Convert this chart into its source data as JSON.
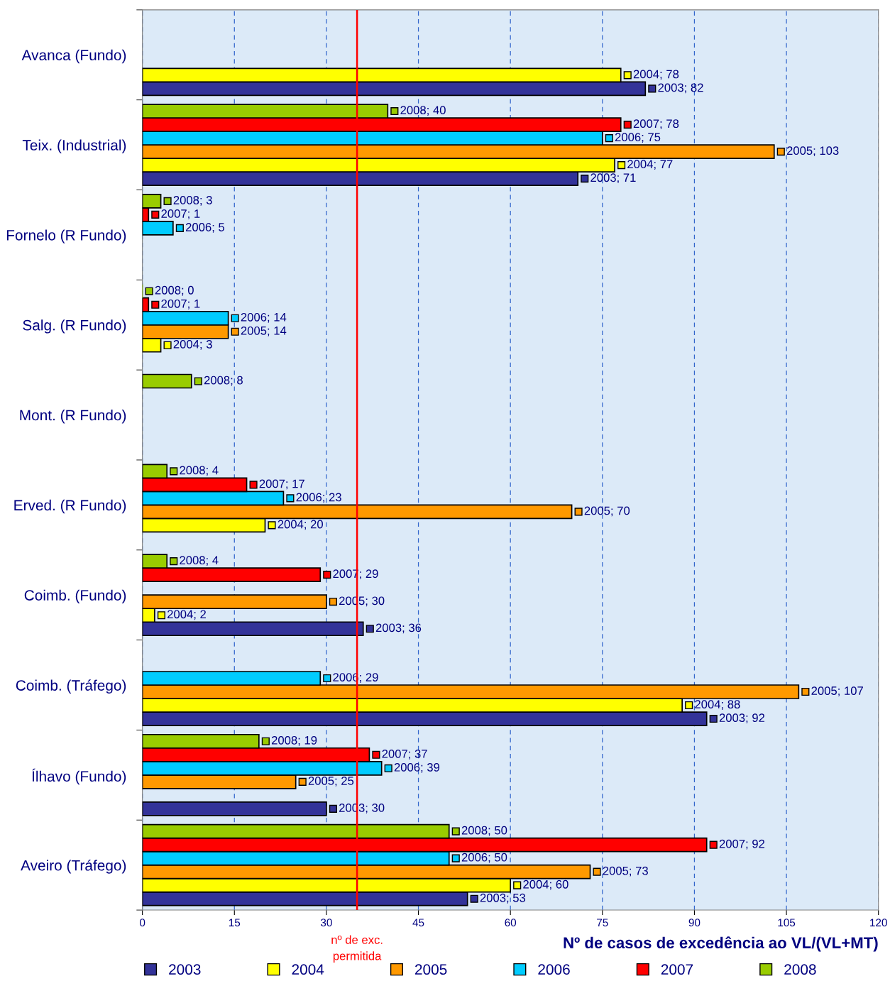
{
  "chart_data": {
    "type": "bar",
    "orientation": "horizontal",
    "xlabel": "Nº de casos de excedência ao VL/(VL+MT)",
    "categories": [
      "Avanca (Fundo)",
      "Teix. (Industrial)",
      "Fornelo (R Fundo)",
      "Salg. (R Fundo)",
      "Mont. (R Fundo)",
      "Erved. (R Fundo)",
      "Coimb. (Fundo)",
      "Coimb. (Tráfego)",
      "Ílhavo (Fundo)",
      "Aveiro (Tráfego)"
    ],
    "series": [
      {
        "name": "2003",
        "color": "#333399",
        "values": [
          82,
          71,
          null,
          null,
          null,
          null,
          36,
          92,
          30,
          53
        ],
        "value_labels": [
          "2003; 82",
          "2003; 71",
          null,
          null,
          null,
          null,
          "2003; 36",
          "2003; 92",
          "2003; 30",
          "2003; 53"
        ]
      },
      {
        "name": "2004",
        "color": "#ffff00",
        "values": [
          78,
          77,
          null,
          3,
          null,
          20,
          2,
          88,
          null,
          60
        ],
        "value_labels": [
          "2004; 78",
          "2004; 77",
          null,
          "2004; 3",
          null,
          "2004; 20",
          "2004; 2",
          "2004; 88",
          null,
          "2004; 60"
        ]
      },
      {
        "name": "2005",
        "color": "#ff9900",
        "values": [
          null,
          103,
          null,
          14,
          null,
          70,
          30,
          107,
          25,
          73
        ],
        "value_labels": [
          null,
          "2005; 103",
          null,
          "2005; 14",
          null,
          "2005; 70",
          "2005; 30",
          "2005; 107",
          "2005; 25",
          "2005; 73"
        ]
      },
      {
        "name": "2006",
        "color": "#00ccff",
        "values": [
          null,
          75,
          5,
          14,
          null,
          23,
          null,
          29,
          39,
          50
        ],
        "value_labels": [
          null,
          "2006; 75",
          "2006; 5",
          "2006; 14",
          null,
          "2006; 23",
          null,
          "2006; 29",
          "2006; 39",
          "2006; 50"
        ]
      },
      {
        "name": "2007",
        "color": "#ff0000",
        "values": [
          null,
          78,
          1,
          1,
          null,
          17,
          29,
          null,
          37,
          92
        ],
        "value_labels": [
          null,
          "2007; 78",
          "2007; 1",
          "2007; 1",
          null,
          "2007; 17",
          "2007; 29",
          null,
          "2007; 37",
          "2007; 92"
        ]
      },
      {
        "name": "2008",
        "color": "#99cc00",
        "values": [
          null,
          40,
          3,
          0,
          8,
          4,
          4,
          null,
          19,
          50
        ],
        "value_labels": [
          null,
          "2008; 40",
          "2008; 3",
          "2008; 0",
          "2008; 8",
          "2008; 4",
          "2008; 4",
          null,
          "2008; 19",
          "2008; 50"
        ]
      }
    ],
    "xlim": [
      0,
      120
    ],
    "xticks": [
      0,
      15,
      30,
      45,
      60,
      75,
      90,
      105,
      120
    ],
    "grid": "x",
    "legend": "bottom",
    "ref_lines": [
      {
        "axis": "x",
        "value": 35,
        "label": "nº de exc.\npermitida",
        "color": "#ff0000"
      }
    ]
  }
}
